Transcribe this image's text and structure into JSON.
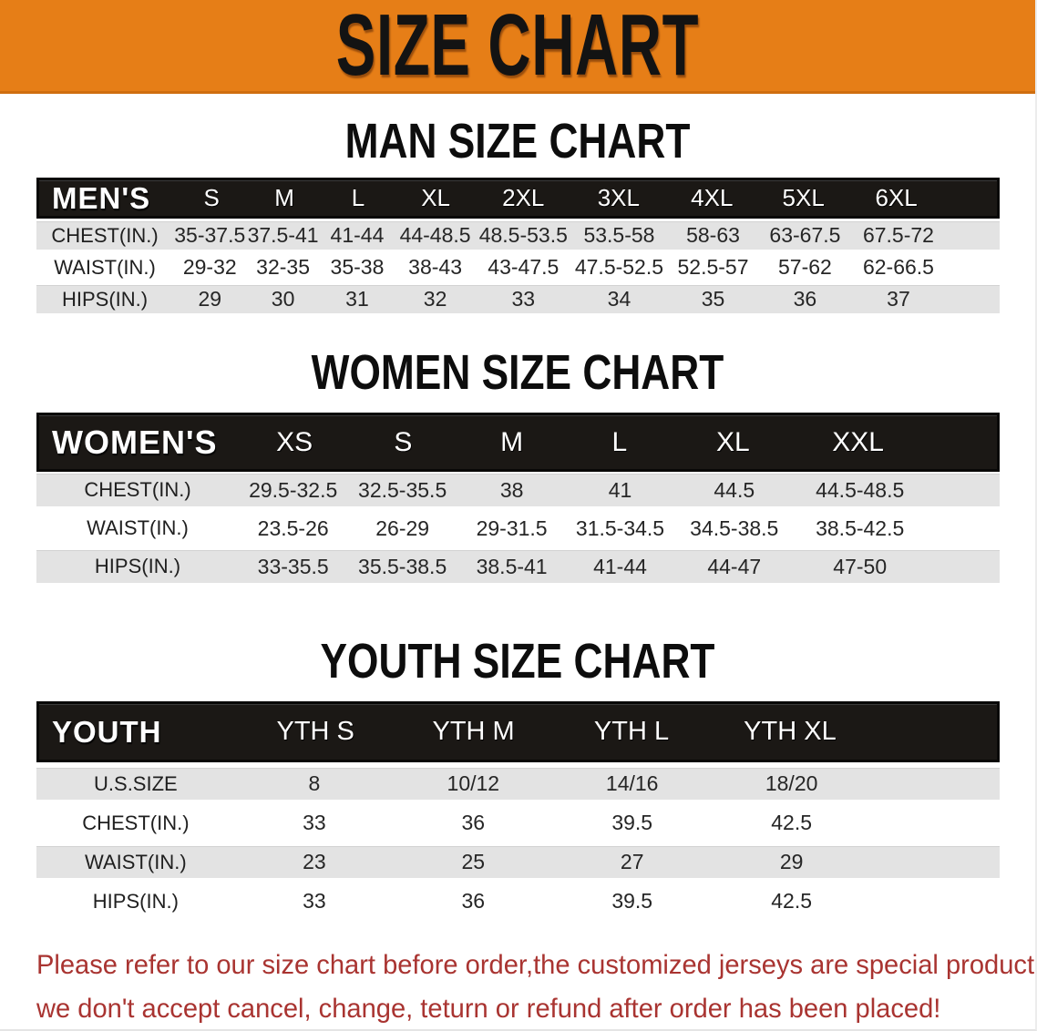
{
  "banner": {
    "title": "SIZE CHART"
  },
  "colors": {
    "banner_bg": "#E67E17",
    "header_bar_bg": "#1B1815",
    "row_gray": "#E3E3E3",
    "disclaimer_red": "#A93431"
  },
  "sections": [
    {
      "id": "men",
      "title": "MAN SIZE CHART",
      "group_label": "MEN'S",
      "sizes": [
        "S",
        "M",
        "L",
        "XL",
        "2XL",
        "3XL",
        "4XL",
        "5XL",
        "6XL"
      ],
      "rows": [
        {
          "label": "CHEST(IN.)",
          "values": [
            "35-37.5",
            "37.5-41",
            "41-44",
            "44-48.5",
            "48.5-53.5",
            "53.5-58",
            "58-63",
            "63-67.5",
            "67.5-72"
          ]
        },
        {
          "label": "WAIST(IN.)",
          "values": [
            "29-32",
            "32-35",
            "35-38",
            "38-43",
            "43-47.5",
            "47.5-52.5",
            "52.5-57",
            "57-62",
            "62-66.5"
          ]
        },
        {
          "label": "HIPS(IN.)",
          "values": [
            "29",
            "30",
            "31",
            "32",
            "33",
            "34",
            "35",
            "36",
            "37"
          ]
        }
      ]
    },
    {
      "id": "women",
      "title": "WOMEN SIZE CHART",
      "group_label": "WOMEN'S",
      "sizes": [
        "XS",
        "S",
        "M",
        "L",
        "XL",
        "XXL"
      ],
      "rows": [
        {
          "label": "CHEST(IN.)",
          "values": [
            "29.5-32.5",
            "32.5-35.5",
            "38",
            "41",
            "44.5",
            "44.5-48.5"
          ]
        },
        {
          "label": "WAIST(IN.)",
          "values": [
            "23.5-26",
            "26-29",
            "29-31.5",
            "31.5-34.5",
            "34.5-38.5",
            "38.5-42.5"
          ]
        },
        {
          "label": "HIPS(IN.)",
          "values": [
            "33-35.5",
            "35.5-38.5",
            "38.5-41",
            "41-44",
            "44-47",
            "47-50"
          ]
        }
      ]
    },
    {
      "id": "youth",
      "title": "YOUTH SIZE CHART",
      "group_label": "YOUTH",
      "sizes": [
        "YTH S",
        "YTH M",
        "YTH L",
        "YTH XL"
      ],
      "rows": [
        {
          "label": "U.S.SIZE",
          "values": [
            "8",
            "10/12",
            "14/16",
            "18/20"
          ]
        },
        {
          "label": "CHEST(IN.)",
          "values": [
            "33",
            "36",
            "39.5",
            "42.5"
          ]
        },
        {
          "label": "WAIST(IN.)",
          "values": [
            "23",
            "25",
            "27",
            "29"
          ]
        },
        {
          "label": "HIPS(IN.)",
          "values": [
            "33",
            "36",
            "39.5",
            "42.5"
          ]
        }
      ]
    }
  ],
  "disclaimer": {
    "line1": "Please refer to our size chart before order,the customized jerseys are special products,",
    "line2": "we don't accept cancel, change, teturn or refund after order has been placed!"
  }
}
